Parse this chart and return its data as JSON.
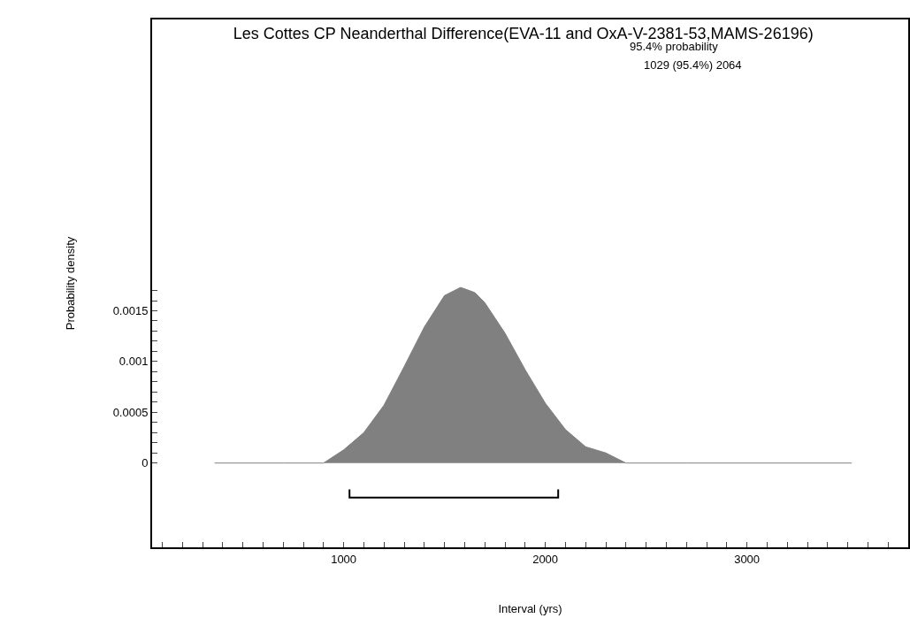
{
  "chart_data": {
    "type": "area",
    "title": "Les Cottes CP Neanderthal Difference(EVA-11 and OxA-V-2381-53,MAMS-26196)",
    "xlabel": "Interval (yrs)",
    "ylabel": "Probability density",
    "annotations": [
      "95.4% probability",
      "1029 (95.4%) 2064"
    ],
    "series": [
      {
        "color": "#808080",
        "x": [
          360,
          700,
          800,
          900,
          1000,
          1100,
          1200,
          1300,
          1400,
          1500,
          1580,
          1650,
          1700,
          1800,
          1900,
          2000,
          2100,
          2200,
          2300,
          2400,
          2700,
          3520
        ],
        "values": [
          0,
          0,
          0,
          0,
          0.00013,
          0.0003,
          0.00057,
          0.00095,
          0.00134,
          0.00165,
          0.00173,
          0.00168,
          0.00158,
          0.00128,
          0.00092,
          0.00059,
          0.00033,
          0.00016,
          0.0001,
          0,
          0,
          0
        ]
      },
      {
        "type": "line",
        "color": "#000000",
        "x": [
          1029,
          1029,
          2064,
          2064
        ],
        "values": [
          -0.00026,
          -0.00034,
          -0.00034,
          -0.00026
        ]
      }
    ],
    "xlim": [
      50,
      3800
    ],
    "xticks": [
      {
        "value": 100,
        "label": null
      },
      {
        "value": 200,
        "label": null
      },
      {
        "value": 300,
        "label": null
      },
      {
        "value": 400,
        "label": null
      },
      {
        "value": 500,
        "label": null
      },
      {
        "value": 600,
        "label": null
      },
      {
        "value": 700,
        "label": null
      },
      {
        "value": 800,
        "label": null
      },
      {
        "value": 900,
        "label": null
      },
      1000,
      {
        "value": 1100,
        "label": null
      },
      {
        "value": 1200,
        "label": null
      },
      {
        "value": 1300,
        "label": null
      },
      {
        "value": 1400,
        "label": null
      },
      {
        "value": 1500,
        "label": null
      },
      {
        "value": 1600,
        "label": null
      },
      {
        "value": 1700,
        "label": null
      },
      {
        "value": 1800,
        "label": null
      },
      {
        "value": 1900,
        "label": null
      },
      2000,
      {
        "value": 2100,
        "label": null
      },
      {
        "value": 2200,
        "label": null
      },
      {
        "value": 2300,
        "label": null
      },
      {
        "value": 2400,
        "label": null
      },
      {
        "value": 2500,
        "label": null
      },
      {
        "value": 2600,
        "label": null
      },
      {
        "value": 2700,
        "label": null
      },
      {
        "value": 2800,
        "label": null
      },
      {
        "value": 2900,
        "label": null
      },
      3000,
      {
        "value": 3100,
        "label": null
      },
      {
        "value": 3200,
        "label": null
      },
      {
        "value": 3300,
        "label": null
      },
      {
        "value": 3400,
        "label": null
      },
      {
        "value": 3500,
        "label": null
      },
      {
        "value": 3600,
        "label": null
      },
      {
        "value": 3700,
        "label": null
      }
    ],
    "ylim": [
      -0.00083,
      0.00437
    ],
    "yticks": [
      0,
      {
        "value": 0.0001,
        "label": null
      },
      {
        "value": 0.0002,
        "label": null
      },
      {
        "value": 0.0003,
        "label": null
      },
      {
        "value": 0.0004,
        "label": null
      },
      0.0005,
      {
        "value": 0.0006,
        "label": null
      },
      {
        "value": 0.0007,
        "label": null
      },
      {
        "value": 0.0008,
        "label": null
      },
      {
        "value": 0.0009,
        "label": null
      },
      0.001,
      {
        "value": 0.0011,
        "label": null
      },
      {
        "value": 0.0012,
        "label": null
      },
      {
        "value": 0.0013,
        "label": null
      },
      {
        "value": 0.0014,
        "label": null
      },
      0.0015,
      {
        "value": 0.0016,
        "label": null
      },
      {
        "value": 0.0017,
        "label": null
      }
    ],
    "grid": false
  }
}
